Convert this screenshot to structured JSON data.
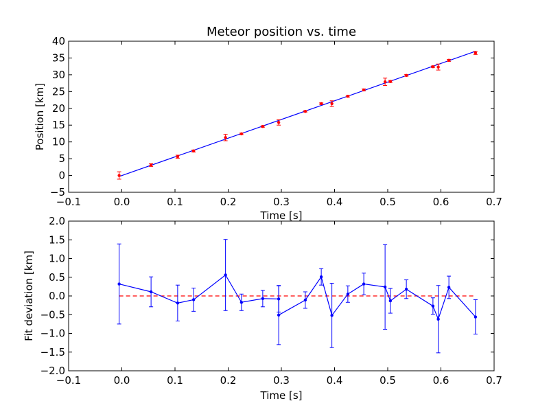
{
  "chart_data": [
    {
      "type": "scatter",
      "title": "Meteor position vs. time",
      "xlabel": "Time [s]",
      "ylabel": "Position [km]",
      "xlim": [
        -0.1,
        0.7
      ],
      "ylim": [
        -5,
        40
      ],
      "xticks": [
        "−0.1",
        "0.0",
        "0.1",
        "0.2",
        "0.3",
        "0.4",
        "0.5",
        "0.6",
        "0.7"
      ],
      "yticks": [
        "−5",
        "0",
        "5",
        "10",
        "15",
        "20",
        "25",
        "30",
        "35",
        "40"
      ],
      "xtick_values": [
        -0.1,
        0.0,
        0.1,
        0.2,
        0.3,
        0.4,
        0.5,
        0.6,
        0.7
      ],
      "ytick_values": [
        -5,
        0,
        5,
        10,
        15,
        20,
        25,
        30,
        35,
        40
      ],
      "grid": false,
      "fit_line": {
        "x": [
          -0.005,
          0.665
        ],
        "y": [
          -0.3,
          37.0
        ],
        "color": "#0000ff"
      },
      "series": [
        {
          "color": "#ff0000",
          "x": [
            -0.005,
            0.055,
            0.105,
            0.135,
            0.195,
            0.225,
            0.265,
            0.295,
            0.345,
            0.375,
            0.395,
            0.425,
            0.455,
            0.495,
            0.505,
            0.535,
            0.585,
            0.595,
            0.615,
            0.665
          ],
          "y": [
            0.0,
            3.1,
            5.6,
            7.3,
            11.3,
            12.4,
            14.6,
            15.8,
            19.1,
            21.4,
            21.4,
            23.6,
            25.5,
            27.9,
            28.0,
            29.8,
            32.4,
            32.3,
            34.3,
            36.5
          ],
          "err": [
            1.1,
            0.4,
            0.45,
            0.3,
            0.95,
            0.22,
            0.22,
            0.8,
            0.2,
            0.22,
            0.85,
            0.22,
            0.28,
            1.1,
            0.3,
            0.25,
            0.22,
            0.9,
            0.3,
            0.45
          ]
        }
      ]
    },
    {
      "type": "line",
      "title": "",
      "xlabel": "Time [s]",
      "ylabel": "Fit deviation [km]",
      "xlim": [
        -0.1,
        0.7
      ],
      "ylim": [
        -2.0,
        2.0
      ],
      "xticks": [
        "−0.1",
        "0.0",
        "0.1",
        "0.2",
        "0.3",
        "0.4",
        "0.5",
        "0.6",
        "0.7"
      ],
      "yticks": [
        "−2.0",
        "−1.5",
        "−1.0",
        "−0.5",
        "0.0",
        "0.5",
        "1.0",
        "1.5",
        "2.0"
      ],
      "xtick_values": [
        -0.1,
        0.0,
        0.1,
        0.2,
        0.3,
        0.4,
        0.5,
        0.6,
        0.7
      ],
      "ytick_values": [
        -2.0,
        -1.5,
        -1.0,
        -0.5,
        0.0,
        0.5,
        1.0,
        1.5,
        2.0
      ],
      "grid": false,
      "zero_line": {
        "y": 0.0,
        "x": [
          -0.005,
          0.665
        ],
        "color": "#ff0000",
        "style": "dashed"
      },
      "series": [
        {
          "color": "#0000ff",
          "x": [
            -0.005,
            0.055,
            0.105,
            0.135,
            0.195,
            0.225,
            0.265,
            0.295,
            0.295,
            0.345,
            0.375,
            0.395,
            0.425,
            0.455,
            0.495,
            0.505,
            0.535,
            0.585,
            0.595,
            0.615,
            0.665
          ],
          "y": [
            0.32,
            0.11,
            -0.19,
            -0.1,
            0.56,
            -0.17,
            -0.07,
            -0.08,
            -0.51,
            -0.11,
            0.51,
            -0.52,
            0.05,
            0.32,
            0.24,
            -0.13,
            0.18,
            -0.27,
            -0.62,
            0.23,
            -0.56
          ],
          "err": [
            1.07,
            0.4,
            0.48,
            0.31,
            0.95,
            0.22,
            0.22,
            0.35,
            0.79,
            0.22,
            0.22,
            0.86,
            0.22,
            0.29,
            1.13,
            0.33,
            0.25,
            0.22,
            0.9,
            0.3,
            0.46
          ]
        }
      ]
    }
  ]
}
